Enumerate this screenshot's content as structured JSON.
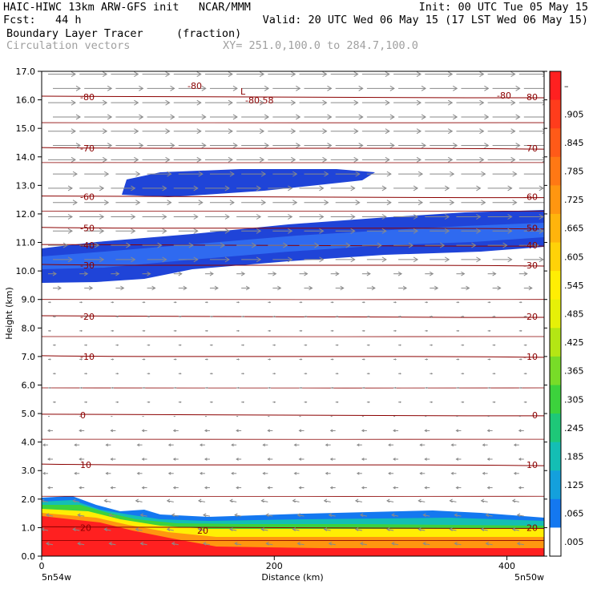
{
  "header": {
    "line1_left": "HAIC-HIWC 13km ARW-GFS init   NCAR/MMM",
    "line1_right": "Init: 00 UTC Tue 05 May 15",
    "line2_left": "Fcst:   44 h",
    "line2_right": "Valid: 20 UTC Wed 06 May 15 (17 LST Wed 06 May 15)",
    "line3_left": "Boundary Layer Tracer",
    "line3_units": "(fraction)",
    "line4_left": "Circulation vectors",
    "line4_xy": "XY= 251.0,100.0 to 284.7,100.0"
  },
  "chart_data": {
    "type": "heatmap",
    "title": "Boundary Layer Tracer",
    "units": "(fraction)",
    "overlay": "Circulation vectors",
    "xlabel": "Distance (km)",
    "ylabel": "Height (km)",
    "xlim": [
      0,
      432
    ],
    "ylim": [
      0.0,
      17.0
    ],
    "x_ticks": [
      "0",
      "200",
      "400"
    ],
    "x_tick_values": [
      0,
      200,
      400
    ],
    "y_ticks": [
      "0.0",
      "1.0",
      "2.0",
      "3.0",
      "4.0",
      "5.0",
      "6.0",
      "7.0",
      "8.0",
      "9.0",
      "10.0",
      "11.0",
      "12.0",
      "13.0",
      "14.0",
      "15.0",
      "16.0",
      "17.0"
    ],
    "endpoint_left": "5n54w",
    "endpoint_right": "5n50w",
    "colorbar": {
      "labels": [
        "–",
        ".905",
        ".845",
        ".785",
        ".725",
        ".665",
        ".605",
        ".545",
        ".485",
        ".425",
        ".365",
        ".305",
        ".245",
        ".185",
        ".125",
        ".065",
        ".005"
      ],
      "colors": [
        "#ff2020",
        "#ff3c1c",
        "#ff5a18",
        "#ff7814",
        "#ff9610",
        "#ffb40c",
        "#ffd208",
        "#ffee04",
        "#e6f008",
        "#b4e614",
        "#78dc28",
        "#3cd23c",
        "#1ec878",
        "#14beb4",
        "#14a0dc",
        "#1478f0",
        "#ffffff"
      ]
    },
    "temperature_contours": [
      {
        "label": "-80",
        "height_km": 16.1
      },
      {
        "label": "-70",
        "height_km": 14.3
      },
      {
        "label": "-60",
        "height_km": 12.6
      },
      {
        "label": "-50",
        "height_km": 11.5
      },
      {
        "label": "-40",
        "height_km": 10.9
      },
      {
        "label": "-30",
        "height_km": 10.2
      },
      {
        "label": "-20",
        "height_km": 8.4
      },
      {
        "label": "-10",
        "height_km": 7.0
      },
      {
        "label": "0",
        "height_km": 4.95
      },
      {
        "label": "10",
        "height_km": 3.2
      },
      {
        "label": "20",
        "height_km": 1.0
      }
    ],
    "extra_contour_labels": [
      "L",
      "-80.58"
    ],
    "tracer_region_upper": {
      "value": 0.005,
      "height_km": [
        12.6,
        13.5
      ],
      "x_km": [
        70,
        290
      ]
    },
    "tracer_band_mid": {
      "value": 0.065,
      "height_km": [
        9.6,
        12.0
      ]
    },
    "tracer_boundary_layer": {
      "value": 0.905,
      "top_height_km": 2.0
    }
  }
}
